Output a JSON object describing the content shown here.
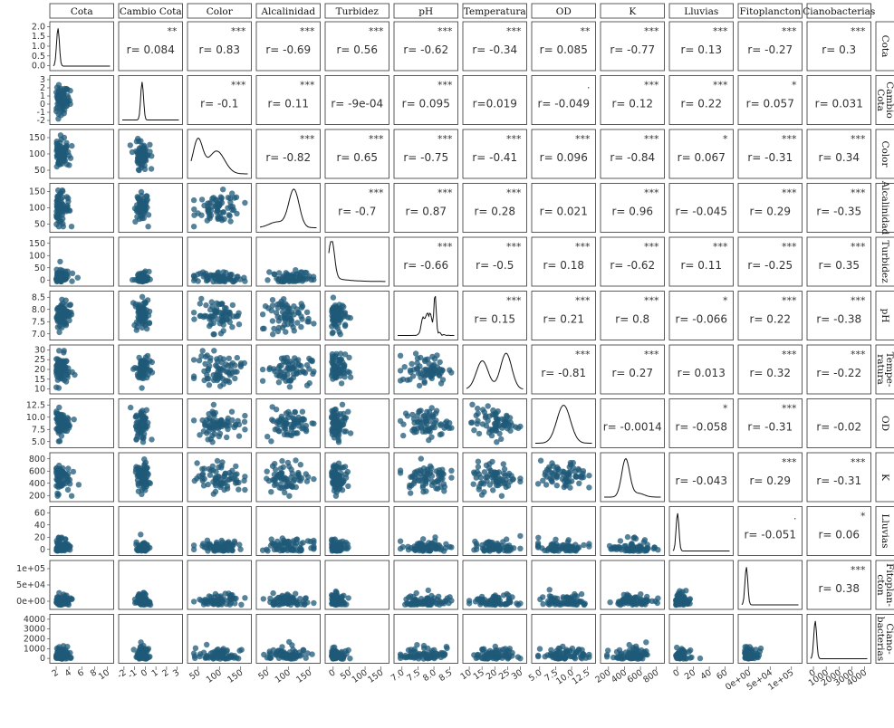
{
  "chart_data": {
    "type": "scatter-matrix",
    "variables": [
      "Cota",
      "Cambio Cota",
      "Color",
      "Alcalinidad",
      "Turbidez",
      "pH",
      "Temperatura",
      "OD",
      "K",
      "Lluvias",
      "Fitoplancton",
      "Cianobacterias"
    ],
    "row_labels": [
      "Cota",
      "Cambio\nCota",
      "Color",
      "Alcalinidad",
      "Turbidez",
      "pH",
      "Tempe-\nratura",
      "OD",
      "K",
      "Lluvias",
      "Fitoplan-\ncton",
      "Ciano-\nbacterias"
    ],
    "point_color": "#1f5a78",
    "upper": [
      {
        "row": 0,
        "col": 1,
        "r": "r= 0.084",
        "stars": "**"
      },
      {
        "row": 0,
        "col": 2,
        "r": "r= 0.83",
        "stars": "***"
      },
      {
        "row": 0,
        "col": 3,
        "r": "r= -0.69",
        "stars": "***"
      },
      {
        "row": 0,
        "col": 4,
        "r": "r= 0.56",
        "stars": "***"
      },
      {
        "row": 0,
        "col": 5,
        "r": "r= -0.62",
        "stars": "***"
      },
      {
        "row": 0,
        "col": 6,
        "r": "r= -0.34",
        "stars": "***"
      },
      {
        "row": 0,
        "col": 7,
        "r": "r= 0.085",
        "stars": "**"
      },
      {
        "row": 0,
        "col": 8,
        "r": "r= -0.77",
        "stars": "***"
      },
      {
        "row": 0,
        "col": 9,
        "r": "r= 0.13",
        "stars": "***"
      },
      {
        "row": 0,
        "col": 10,
        "r": "r= -0.27",
        "stars": "***"
      },
      {
        "row": 0,
        "col": 11,
        "r": "r= 0.3",
        "stars": "***"
      },
      {
        "row": 1,
        "col": 2,
        "r": "r= -0.1",
        "stars": "***"
      },
      {
        "row": 1,
        "col": 3,
        "r": "r= 0.11",
        "stars": "***"
      },
      {
        "row": 1,
        "col": 4,
        "r": "r= -9e-04",
        "stars": ""
      },
      {
        "row": 1,
        "col": 5,
        "r": "r= 0.095",
        "stars": "***"
      },
      {
        "row": 1,
        "col": 6,
        "r": "r=0.019",
        "stars": ""
      },
      {
        "row": 1,
        "col": 7,
        "r": "r= -0.049",
        "stars": "."
      },
      {
        "row": 1,
        "col": 8,
        "r": "r= 0.12",
        "stars": "***"
      },
      {
        "row": 1,
        "col": 9,
        "r": "r= 0.22",
        "stars": "***"
      },
      {
        "row": 1,
        "col": 10,
        "r": "r= 0.057",
        "stars": "*"
      },
      {
        "row": 1,
        "col": 11,
        "r": "r= 0.031",
        "stars": ""
      },
      {
        "row": 2,
        "col": 3,
        "r": "r= -0.82",
        "stars": "***"
      },
      {
        "row": 2,
        "col": 4,
        "r": "r= 0.65",
        "stars": "***"
      },
      {
        "row": 2,
        "col": 5,
        "r": "r= -0.75",
        "stars": "***"
      },
      {
        "row": 2,
        "col": 6,
        "r": "r= -0.41",
        "stars": "***"
      },
      {
        "row": 2,
        "col": 7,
        "r": "r= 0.096",
        "stars": "***"
      },
      {
        "row": 2,
        "col": 8,
        "r": "r= -0.84",
        "stars": "***"
      },
      {
        "row": 2,
        "col": 9,
        "r": "r= 0.067",
        "stars": "*"
      },
      {
        "row": 2,
        "col": 10,
        "r": "r= -0.31",
        "stars": "***"
      },
      {
        "row": 2,
        "col": 11,
        "r": "r= 0.34",
        "stars": "***"
      },
      {
        "row": 3,
        "col": 4,
        "r": "r= -0.7",
        "stars": "***"
      },
      {
        "row": 3,
        "col": 5,
        "r": "r= 0.87",
        "stars": "***"
      },
      {
        "row": 3,
        "col": 6,
        "r": "r= 0.28",
        "stars": "***"
      },
      {
        "row": 3,
        "col": 7,
        "r": "r= 0.021",
        "stars": ""
      },
      {
        "row": 3,
        "col": 8,
        "r": "r= 0.96",
        "stars": "***"
      },
      {
        "row": 3,
        "col": 9,
        "r": "r= -0.045",
        "stars": ""
      },
      {
        "row": 3,
        "col": 10,
        "r": "r= 0.29",
        "stars": "***"
      },
      {
        "row": 3,
        "col": 11,
        "r": "r= -0.35",
        "stars": "***"
      },
      {
        "row": 4,
        "col": 5,
        "r": "r= -0.66",
        "stars": "***"
      },
      {
        "row": 4,
        "col": 6,
        "r": "r= -0.5",
        "stars": "***"
      },
      {
        "row": 4,
        "col": 7,
        "r": "r= 0.18",
        "stars": "***"
      },
      {
        "row": 4,
        "col": 8,
        "r": "r= -0.62",
        "stars": "***"
      },
      {
        "row": 4,
        "col": 9,
        "r": "r= 0.11",
        "stars": "***"
      },
      {
        "row": 4,
        "col": 10,
        "r": "r= -0.25",
        "stars": "***"
      },
      {
        "row": 4,
        "col": 11,
        "r": "r= 0.35",
        "stars": "***"
      },
      {
        "row": 5,
        "col": 6,
        "r": "r= 0.15",
        "stars": "***"
      },
      {
        "row": 5,
        "col": 7,
        "r": "r= 0.21",
        "stars": "***"
      },
      {
        "row": 5,
        "col": 8,
        "r": "r= 0.8",
        "stars": "***"
      },
      {
        "row": 5,
        "col": 9,
        "r": "r= -0.066",
        "stars": "*"
      },
      {
        "row": 5,
        "col": 10,
        "r": "r= 0.22",
        "stars": "***"
      },
      {
        "row": 5,
        "col": 11,
        "r": "r= -0.38",
        "stars": "***"
      },
      {
        "row": 6,
        "col": 7,
        "r": "r= -0.81",
        "stars": "***"
      },
      {
        "row": 6,
        "col": 8,
        "r": "r= 0.27",
        "stars": "***"
      },
      {
        "row": 6,
        "col": 9,
        "r": "r= 0.013",
        "stars": ""
      },
      {
        "row": 6,
        "col": 10,
        "r": "r= 0.32",
        "stars": "***"
      },
      {
        "row": 6,
        "col": 11,
        "r": "r= -0.22",
        "stars": "***"
      },
      {
        "row": 7,
        "col": 8,
        "r": "r= -0.0014",
        "stars": ""
      },
      {
        "row": 7,
        "col": 9,
        "r": "r= -0.058",
        "stars": "*"
      },
      {
        "row": 7,
        "col": 10,
        "r": "r= -0.31",
        "stars": "***"
      },
      {
        "row": 7,
        "col": 11,
        "r": "r= -0.02",
        "stars": ""
      },
      {
        "row": 8,
        "col": 9,
        "r": "r= -0.043",
        "stars": ""
      },
      {
        "row": 8,
        "col": 10,
        "r": "r= 0.29",
        "stars": "***"
      },
      {
        "row": 8,
        "col": 11,
        "r": "r= -0.31",
        "stars": "***"
      },
      {
        "row": 9,
        "col": 10,
        "r": "r= -0.051",
        "stars": "."
      },
      {
        "row": 9,
        "col": 11,
        "r": "r= 0.06",
        "stars": "*"
      },
      {
        "row": 10,
        "col": 11,
        "r": "r= 0.38",
        "stars": "***"
      }
    ],
    "y_ticks": [
      [
        "0.0",
        "0.5",
        "1.0",
        "1.5",
        "2.0"
      ],
      [
        "-2",
        "-1",
        "0",
        "1",
        "2",
        "3"
      ],
      [
        "50",
        "100",
        "150"
      ],
      [
        "50",
        "100",
        "150"
      ],
      [
        "0",
        "50",
        "100",
        "150"
      ],
      [
        "7.0",
        "7.5",
        "8.0",
        "8.5"
      ],
      [
        "10",
        "15",
        "20",
        "25",
        "30"
      ],
      [
        "5.0",
        "7.5",
        "10.0",
        "12.5"
      ],
      [
        "200",
        "400",
        "600",
        "800"
      ],
      [
        "0",
        "20",
        "40",
        "60"
      ],
      [
        "0e+00",
        "5e+04",
        "1e+05"
      ],
      [
        "0",
        "1000",
        "2000",
        "3000",
        "4000"
      ]
    ],
    "x_ticks": [
      [
        "2",
        "4",
        "6",
        "8",
        "10"
      ],
      [
        "-2",
        "-1",
        "0",
        "1",
        "2",
        "3"
      ],
      [
        "50",
        "100",
        "150"
      ],
      [
        "50",
        "100",
        "150"
      ],
      [
        "0",
        "50",
        "100",
        "150"
      ],
      [
        "7.0",
        "7.5",
        "8.0",
        "8.5"
      ],
      [
        "10",
        "15",
        "20",
        "25",
        "30"
      ],
      [
        "5.0",
        "7.5",
        "10.0",
        "12.5"
      ],
      [
        "200",
        "400",
        "600",
        "800"
      ],
      [
        "0",
        "20",
        "40",
        "60"
      ],
      [
        "0e+00",
        "5e+04",
        "1e+05"
      ],
      [
        "0",
        "1000",
        "2000",
        "3000",
        "4000"
      ]
    ]
  }
}
